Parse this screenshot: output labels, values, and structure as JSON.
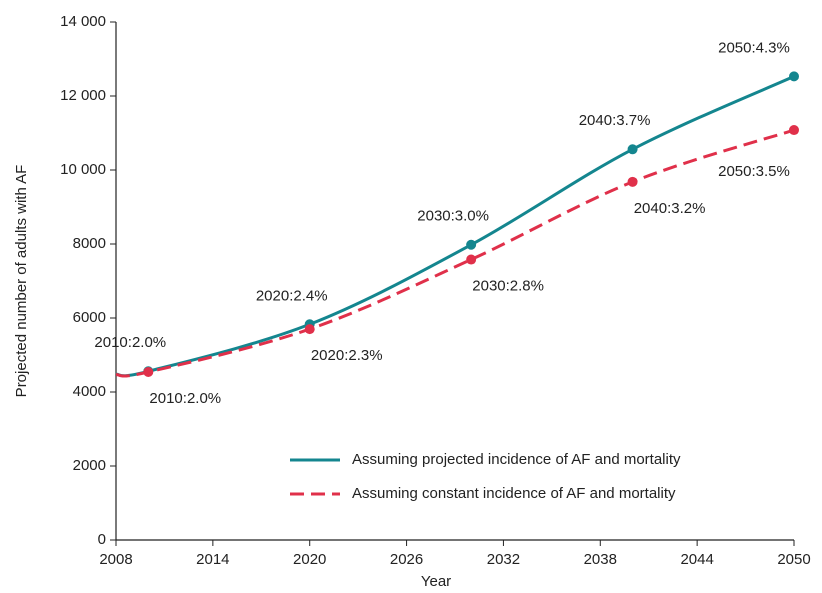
{
  "chart_data": {
    "type": "line",
    "x_label": "Year",
    "y_label": "Projected number of adults with AF",
    "x": [
      2008,
      2010,
      2020,
      2030,
      2040,
      2050
    ],
    "series": [
      {
        "name": "Assuming projected incidence of AF and mortality",
        "color": "#14868f",
        "dash": false,
        "values": [
          4480,
          4560,
          5830,
          7980,
          10560,
          12530
        ],
        "point_labels": [
          null,
          "2010:2.0%",
          "2020:2.4%",
          "2030:3.0%",
          "2040:3.7%",
          "2050:4.3%"
        ]
      },
      {
        "name": "Assuming constant incidence of AF and mortality",
        "color": "#e0304a",
        "dash": true,
        "values": [
          4470,
          4540,
          5700,
          7580,
          9680,
          11080
        ],
        "point_labels": [
          null,
          "2010:2.0%",
          "2020:2.3%",
          "2030:2.8%",
          "2040:3.2%",
          "2050:3.5%"
        ]
      }
    ],
    "xlim": [
      2008,
      2050
    ],
    "xticks": [
      2008,
      2014,
      2020,
      2026,
      2032,
      2038,
      2044,
      2050
    ],
    "ylim": [
      0,
      14000
    ],
    "yticks": [
      0,
      2000,
      4000,
      6000,
      8000,
      {
        "value": 10000,
        "label": "10 000"
      },
      {
        "value": 12000,
        "label": "12 000"
      },
      {
        "value": 14000,
        "label": "14 000"
      }
    ],
    "smooth": true,
    "legend": "lower right"
  }
}
